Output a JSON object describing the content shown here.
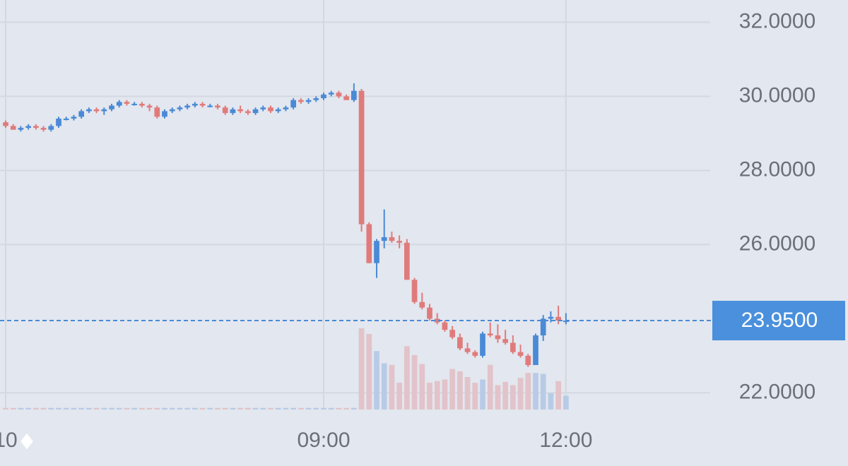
{
  "chart_data": {
    "type": "candlestick",
    "categories": [
      "10",
      null,
      null,
      null,
      null,
      null,
      null,
      null,
      null,
      null,
      null,
      null,
      null,
      null,
      null,
      null,
      null,
      null,
      null,
      null,
      null,
      null,
      null,
      null,
      null,
      null,
      null,
      null,
      null,
      null,
      null,
      null,
      null,
      null,
      null,
      null,
      null,
      null,
      null,
      null,
      null,
      null,
      "09:00",
      null,
      null,
      null,
      null,
      null,
      null,
      null,
      null,
      null,
      null,
      null,
      null,
      null,
      null,
      null,
      null,
      null,
      null,
      null,
      null,
      null,
      null,
      null,
      null,
      null,
      null,
      null,
      null,
      null,
      null,
      null,
      "12:00"
    ],
    "open": [
      29.3,
      29.2,
      29.1,
      29.15,
      29.2,
      29.15,
      29.1,
      29.2,
      29.4,
      29.4,
      29.45,
      29.6,
      29.65,
      29.6,
      29.65,
      29.75,
      29.85,
      29.8,
      29.8,
      29.75,
      29.7,
      29.45,
      29.6,
      29.65,
      29.7,
      29.75,
      29.8,
      29.75,
      29.75,
      29.7,
      29.55,
      29.65,
      29.6,
      29.55,
      29.65,
      29.7,
      29.6,
      29.65,
      29.7,
      29.9,
      29.85,
      29.9,
      29.95,
      30.05,
      30.1,
      30.0,
      29.9,
      30.15,
      26.55,
      25.5,
      26.1,
      26.2,
      26.1,
      26.05,
      25.05,
      24.45,
      24.3,
      24.0,
      23.9,
      23.7,
      23.5,
      23.2,
      23.1,
      23.0,
      23.6,
      23.55,
      23.45,
      23.35,
      23.1,
      23.0,
      22.75,
      23.55,
      24.0,
      24.05,
      23.95
    ],
    "high": [
      29.35,
      29.25,
      29.2,
      29.25,
      29.25,
      29.2,
      29.25,
      29.45,
      29.45,
      29.5,
      29.65,
      29.7,
      29.7,
      29.7,
      29.8,
      29.9,
      29.9,
      29.85,
      29.85,
      29.8,
      29.75,
      29.65,
      29.7,
      29.75,
      29.8,
      29.85,
      29.85,
      29.8,
      29.8,
      29.75,
      29.7,
      29.75,
      29.65,
      29.7,
      29.75,
      29.75,
      29.7,
      29.75,
      29.95,
      29.95,
      29.95,
      30.0,
      30.1,
      30.15,
      30.15,
      30.05,
      30.35,
      30.2,
      26.6,
      26.15,
      26.95,
      26.35,
      26.25,
      26.15,
      25.1,
      24.7,
      24.4,
      24.15,
      23.95,
      23.8,
      23.6,
      23.35,
      23.15,
      23.65,
      23.9,
      23.85,
      23.7,
      23.55,
      23.3,
      23.05,
      23.6,
      24.1,
      24.2,
      24.35,
      24.15
    ],
    "low": [
      29.15,
      29.1,
      29.05,
      29.1,
      29.1,
      29.05,
      29.05,
      29.15,
      29.35,
      29.35,
      29.4,
      29.55,
      29.55,
      29.5,
      29.6,
      29.7,
      29.75,
      29.75,
      29.7,
      29.6,
      29.4,
      29.4,
      29.55,
      29.6,
      29.65,
      29.7,
      29.7,
      29.7,
      29.65,
      29.5,
      29.5,
      29.55,
      29.5,
      29.5,
      29.6,
      29.55,
      29.55,
      29.6,
      29.65,
      29.8,
      29.8,
      29.85,
      29.9,
      30.0,
      29.95,
      29.9,
      29.85,
      26.35,
      25.5,
      25.1,
      25.9,
      26.05,
      25.9,
      25.05,
      24.4,
      24.25,
      23.95,
      23.85,
      23.65,
      23.45,
      23.15,
      23.05,
      22.95,
      22.95,
      23.5,
      23.35,
      23.3,
      23.05,
      22.95,
      22.7,
      22.75,
      23.4,
      23.9,
      23.85,
      23.85
    ],
    "close": [
      29.2,
      29.1,
      29.15,
      29.2,
      29.15,
      29.1,
      29.2,
      29.4,
      29.4,
      29.45,
      29.6,
      29.65,
      29.6,
      29.65,
      29.75,
      29.85,
      29.8,
      29.8,
      29.75,
      29.7,
      29.45,
      29.6,
      29.65,
      29.7,
      29.75,
      29.8,
      29.75,
      29.75,
      29.7,
      29.55,
      29.65,
      29.6,
      29.55,
      29.65,
      29.7,
      29.6,
      29.65,
      29.7,
      29.9,
      29.85,
      29.9,
      29.95,
      30.05,
      30.1,
      30.0,
      29.9,
      30.15,
      26.55,
      25.5,
      26.1,
      26.2,
      26.1,
      26.05,
      25.05,
      24.45,
      24.3,
      24.0,
      23.9,
      23.7,
      23.5,
      23.2,
      23.1,
      23.0,
      23.6,
      23.55,
      23.45,
      23.35,
      23.1,
      23.0,
      22.75,
      23.55,
      24.0,
      24.05,
      23.95,
      23.95
    ],
    "volume": [
      2,
      2,
      2,
      2,
      2,
      2,
      2,
      2,
      2,
      2,
      2,
      2,
      2,
      2,
      2,
      2,
      2,
      2,
      2,
      2,
      2,
      2,
      2,
      2,
      2,
      2,
      2,
      2,
      2,
      2,
      2,
      2,
      2,
      2,
      2,
      2,
      2,
      2,
      2,
      2,
      2,
      2,
      2,
      2,
      2,
      2,
      2,
      100,
      93,
      72,
      57,
      55,
      33,
      78,
      67,
      56,
      33,
      35,
      37,
      50,
      47,
      40,
      33,
      37,
      55,
      30,
      34,
      30,
      39,
      45,
      45,
      44,
      20,
      35,
      17
    ],
    "ylim": [
      21.55,
      32.6
    ],
    "yticks": [
      {
        "value": 22,
        "label": "22.0000"
      },
      {
        "value": 26,
        "label": "26.0000"
      },
      {
        "value": 28,
        "label": "28.0000"
      },
      {
        "value": 30,
        "label": "30.0000"
      },
      {
        "value": 32,
        "label": "32.0000"
      }
    ],
    "vlim": [
      0,
      100
    ],
    "last_price": {
      "value": 23.95,
      "label": "23.9500"
    },
    "up_color": "#4a8ad6",
    "down_color": "#e07b7b",
    "up_volume_color": "#b8cbe6",
    "down_volume_color": "#e2c3c9",
    "grid": true
  }
}
